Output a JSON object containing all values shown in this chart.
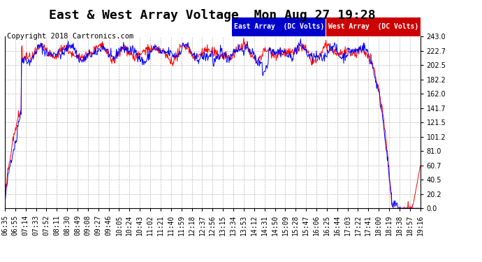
{
  "title": "East & West Array Voltage  Mon Aug 27 19:28",
  "copyright": "Copyright 2018 Cartronics.com",
  "legend_east": "East Array  (DC Volts)",
  "legend_west": "West Array  (DC Volts)",
  "east_color": "#0000ff",
  "west_color": "#ff0000",
  "legend_east_bg": "#0000cc",
  "legend_west_bg": "#cc0000",
  "bg_color": "#ffffff",
  "plot_bg": "#ffffff",
  "grid_color": "#aaaaaa",
  "yticks": [
    0.0,
    20.2,
    40.5,
    60.7,
    81.0,
    101.2,
    121.5,
    141.7,
    162.0,
    182.2,
    202.5,
    222.7,
    243.0
  ],
  "ymin": 0.0,
  "ymax": 243.0,
  "title_fontsize": 13,
  "copyright_fontsize": 7.5,
  "tick_fontsize": 7,
  "xtick_labels": [
    "06:35",
    "06:55",
    "07:14",
    "07:33",
    "07:52",
    "08:11",
    "08:30",
    "08:49",
    "09:08",
    "09:27",
    "09:46",
    "10:05",
    "10:24",
    "10:43",
    "11:02",
    "11:21",
    "11:40",
    "11:59",
    "12:18",
    "12:37",
    "12:56",
    "13:15",
    "13:34",
    "13:53",
    "14:12",
    "14:31",
    "14:50",
    "15:09",
    "15:28",
    "15:47",
    "16:06",
    "16:25",
    "16:44",
    "17:03",
    "17:22",
    "17:41",
    "18:00",
    "18:19",
    "18:38",
    "18:57",
    "19:16"
  ]
}
